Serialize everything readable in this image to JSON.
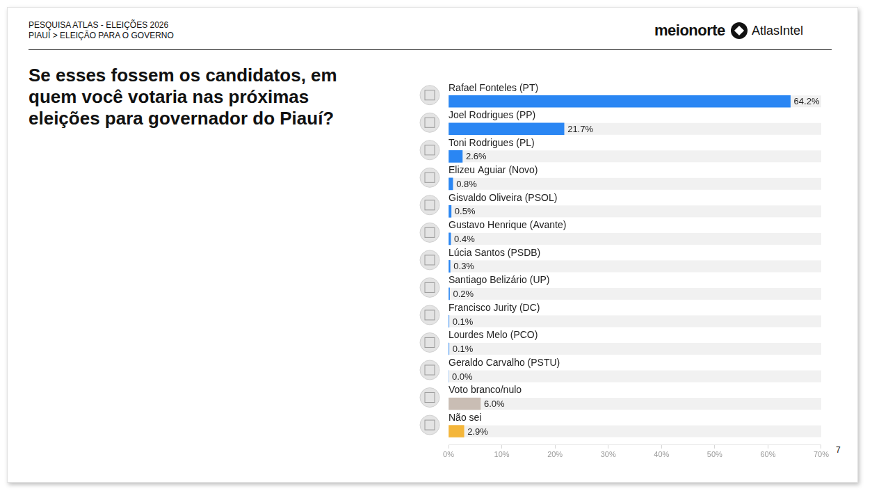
{
  "header": {
    "lines": [
      "PESQUISA ATLAS - ELEIÇÕES 2026",
      "PIAUÍ > ELEIÇÃO PARA O GOVERNO"
    ],
    "brands": [
      "meionorte",
      "AtlasIntel"
    ]
  },
  "page_number": 7,
  "chart_data": {
    "type": "bar",
    "orientation": "horizontal",
    "title": "Se esses fossem os candidatos, em quem você votaria nas próximas eleições para governador do Piauí?",
    "categories": [
      "Rafael Fonteles (PT)",
      "Joel Rodrigues (PP)",
      "Toni Rodrigues (PL)",
      "Elizeu Aguiar (Novo)",
      "Gisvaldo Oliveira (PSOL)",
      "Gustavo Henrique (Avante)",
      "Lúcia Santos (PSDB)",
      "Santiago Belizário (UP)",
      "Francisco Jurity (DC)",
      "Lourdes Melo (PCO)",
      "Geraldo Carvalho (PSTU)",
      "Voto branco/nulo",
      "Não sei"
    ],
    "values": [
      64.2,
      21.7,
      2.6,
      0.8,
      0.5,
      0.4,
      0.3,
      0.2,
      0.1,
      0.1,
      0.0,
      6.0,
      2.9
    ],
    "value_labels": [
      "64.2%",
      "21.7%",
      "2.6%",
      "0.8%",
      "0.5%",
      "0.4%",
      "0.3%",
      "0.2%",
      "0.1%",
      "0.1%",
      "0.0%",
      "6.0%",
      "2.9%"
    ],
    "colors": [
      "#2a86f3",
      "#2a86f3",
      "#2a86f3",
      "#2a86f3",
      "#2a86f3",
      "#2a86f3",
      "#2a86f3",
      "#2a86f3",
      "#2a86f3",
      "#2a86f3",
      "#2a86f3",
      "#c9bdb4",
      "#f4b63a"
    ],
    "xlim": [
      0,
      70
    ],
    "xticks": [
      {
        "value": 0,
        "label": "0%"
      },
      {
        "value": 10,
        "label": "10%"
      },
      {
        "value": 20,
        "label": "20%"
      },
      {
        "value": 30,
        "label": "30%"
      },
      {
        "value": 40,
        "label": "40%"
      },
      {
        "value": 50,
        "label": "50%"
      },
      {
        "value": 60,
        "label": "60%"
      },
      {
        "value": 70,
        "label": "70%"
      }
    ],
    "grid": false,
    "data_labels": true,
    "tick_labels": "x"
  }
}
